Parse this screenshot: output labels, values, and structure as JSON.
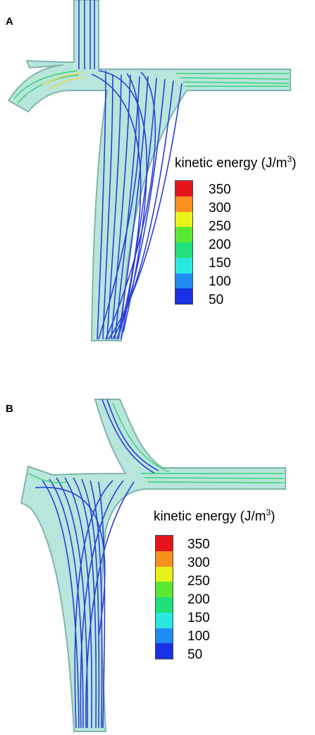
{
  "panels": [
    {
      "label": "A",
      "legend": {
        "title": "kinetic energy (J/m",
        "title_sup": "3",
        "title_close": ")",
        "ticks": [
          "350",
          "300",
          "250",
          "200",
          "150",
          "100",
          "50"
        ],
        "colors": [
          "#e8141c",
          "#f7901e",
          "#e6f21a",
          "#5be832",
          "#1fe07a",
          "#2ae8e0",
          "#1e8cf0",
          "#1a32e6"
        ]
      }
    },
    {
      "label": "B",
      "legend": {
        "title": "kinetic energy (J/m",
        "title_sup": "3",
        "title_close": ")",
        "ticks": [
          "350",
          "300",
          "250",
          "200",
          "150",
          "100",
          "50"
        ],
        "colors": [
          "#e8141c",
          "#f7901e",
          "#e6f21a",
          "#5be832",
          "#1fe07a",
          "#2ae8e0",
          "#1e8cf0",
          "#1a32e6"
        ]
      }
    }
  ],
  "colors": {
    "vessel_fill": "#b8e6dc",
    "vessel_edge": "#7fb5ad",
    "streamline": "#2a3fd6",
    "streamline_fast": "#3bd17a",
    "streamline_hot": "#e8d84a"
  }
}
